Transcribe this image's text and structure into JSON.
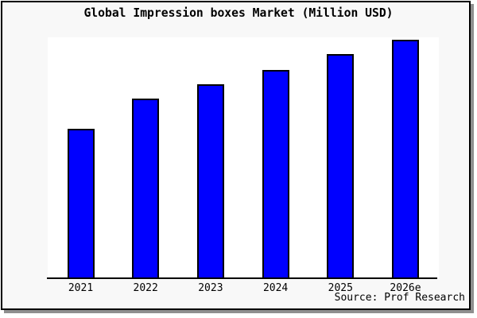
{
  "header": {
    "title": "Global Impression boxes Market (Million USD)"
  },
  "footer": {
    "source_label": "Source: Prof Research"
  },
  "colors": {
    "bar_fill": "#0000ff",
    "bar_border": "#000000",
    "axis": "#000000",
    "figure_background": "#f8f8f8",
    "plot_background": "#ffffff",
    "frame_border": "#000000",
    "frame_shadow": "#8f8f8f",
    "text": "#000000"
  },
  "chart_data": {
    "type": "bar",
    "title": "Global Impression boxes Market (Million USD)",
    "categories": [
      "2021",
      "2022",
      "2023",
      "2024",
      "2025",
      "2026e"
    ],
    "values": [
      62,
      74.5,
      80.5,
      86.5,
      93,
      99
    ],
    "unit": "Million USD",
    "value_scale_note": "no y-axis ticks or labels shown; values estimated as percent of plot height",
    "xlabel": "",
    "ylabel": "",
    "ylim": [
      0,
      100
    ],
    "grid": false,
    "legend": false
  }
}
